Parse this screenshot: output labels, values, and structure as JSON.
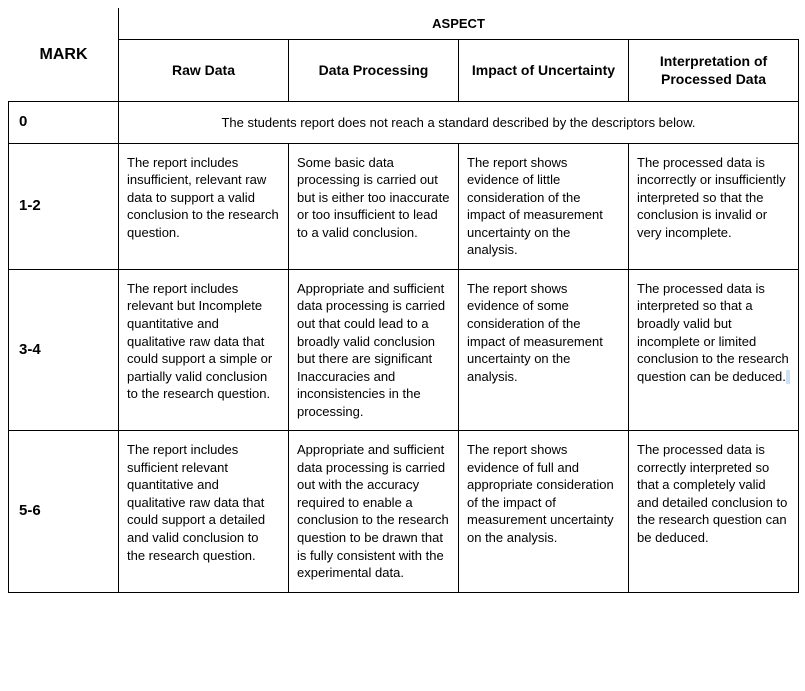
{
  "table": {
    "headers": {
      "mark": "MARK",
      "aspect": "ASPECT",
      "columns": [
        "Raw Data",
        "Data Processing",
        "Impact of Uncertainty",
        "Interpretation of Processed Data"
      ]
    },
    "rows": [
      {
        "mark": "0",
        "full_span_text": "The students report does not reach a standard described by the descriptors below."
      },
      {
        "mark": "1-2",
        "cells": [
          "The report includes insufficient, relevant raw data to support a valid conclusion to the research question.",
          "Some basic data processing is carried out but is either too inaccurate or too insufficient to lead to a valid conclusion.",
          "The report shows evidence of little consideration of the impact of measurement uncertainty on the analysis.",
          "The processed data is incorrectly or insufficiently interpreted so that the conclusion is invalid or very incomplete."
        ]
      },
      {
        "mark": "3-4",
        "cells": [
          "The report includes relevant but Incomplete quantitative and qualitative raw data that could support a simple or partially valid conclusion to the research question.",
          "Appropriate and sufficient data processing is carried out that could lead to a broadly valid conclusion but there are significant Inaccuracies and inconsistencies in the processing.",
          "The report shows evidence of some consideration of the impact of measurement uncertainty on the analysis.",
          "The processed data is interpreted so that a broadly valid but incomplete or limited conclusion to the research question can be deduced."
        ],
        "trailing_highlight": true
      },
      {
        "mark": "5-6",
        "cells": [
          "The report includes sufficient relevant quantitative and qualitative raw data that could support a detailed and valid conclusion to the research question.",
          "Appropriate and sufficient data processing is carried out with the accuracy required to enable a conclusion to the research question to be drawn that is fully consistent with the experimental data.",
          "The report shows evidence of full and appropriate consideration of the impact of measurement uncertainty on the analysis.",
          "The processed data is correctly interpreted so that a completely valid and detailed conclusion to the research question can be deduced."
        ]
      }
    ]
  },
  "style": {
    "border_color": "#000000",
    "background_color": "#ffffff",
    "text_color": "#000000",
    "highlight_color": "#cfe2f3",
    "font_family": "Arial",
    "header_font_size_pt": 12,
    "body_font_size_pt": 10
  }
}
